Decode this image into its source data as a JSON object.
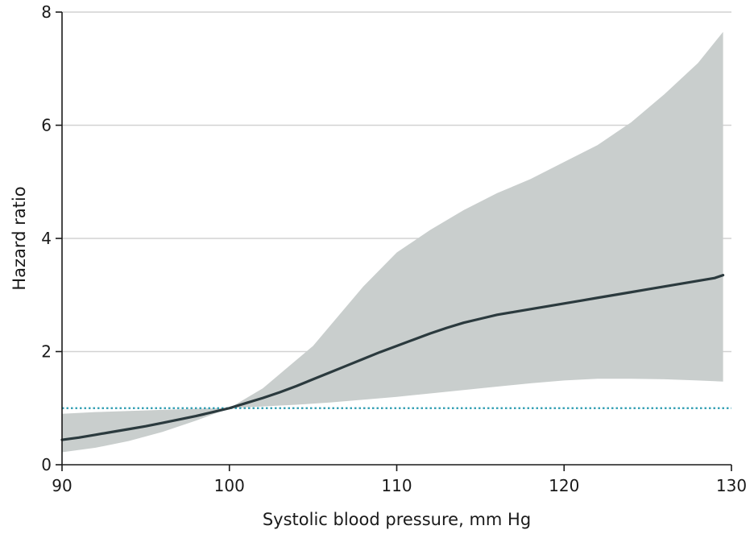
{
  "chart_data": {
    "type": "line",
    "title": "",
    "xlabel": "Systolic blood pressure, mm Hg",
    "ylabel": "Hazard ratio",
    "xlim": [
      90,
      130
    ],
    "ylim": [
      0,
      8
    ],
    "xticks": [
      90,
      100,
      110,
      120,
      130
    ],
    "yticks": [
      0,
      2,
      4,
      6,
      8
    ],
    "x_tick_labels": [
      "90",
      "100",
      "110",
      "120",
      "130"
    ],
    "y_tick_labels": [
      "0",
      "2",
      "4",
      "6",
      "8"
    ],
    "grid": "horizontal",
    "legend": "none",
    "reference_line": {
      "y": 1,
      "style": "dotted",
      "color": "#2a9bb0"
    },
    "series": [
      {
        "type": "line",
        "color": "#2b3a3e",
        "x": [
          90,
          91,
          92,
          93,
          94,
          95,
          96,
          97,
          98,
          99,
          100,
          101,
          102,
          103,
          104,
          105,
          106,
          107,
          108,
          109,
          110,
          111,
          112,
          113,
          114,
          115,
          116,
          117,
          118,
          119,
          120,
          121,
          122,
          123,
          124,
          125,
          126,
          127,
          128,
          129,
          129.5
        ],
        "y": [
          0.44,
          0.48,
          0.53,
          0.58,
          0.63,
          0.68,
          0.74,
          0.8,
          0.86,
          0.93,
          1.0,
          1.09,
          1.18,
          1.28,
          1.39,
          1.51,
          1.63,
          1.75,
          1.87,
          1.99,
          2.1,
          2.21,
          2.32,
          2.42,
          2.51,
          2.58,
          2.65,
          2.7,
          2.75,
          2.8,
          2.85,
          2.9,
          2.95,
          3.0,
          3.05,
          3.1,
          3.15,
          3.2,
          3.25,
          3.3,
          3.35
        ]
      }
    ],
    "confidence_band": {
      "color": "#c9cecd",
      "x": [
        90,
        92,
        94,
        96,
        98,
        100,
        102,
        104,
        105,
        106,
        108,
        110,
        112,
        114,
        116,
        118,
        120,
        122,
        124,
        126,
        128,
        129.5
      ],
      "upper": [
        0.9,
        0.93,
        0.95,
        0.97,
        0.99,
        1.0,
        1.35,
        1.85,
        2.1,
        2.45,
        3.15,
        3.75,
        4.15,
        4.5,
        4.8,
        5.05,
        5.35,
        5.65,
        6.05,
        6.55,
        7.1,
        7.65
      ],
      "lower": [
        0.22,
        0.3,
        0.42,
        0.58,
        0.78,
        1.0,
        1.03,
        1.06,
        1.08,
        1.1,
        1.15,
        1.2,
        1.26,
        1.32,
        1.38,
        1.44,
        1.49,
        1.52,
        1.52,
        1.51,
        1.49,
        1.47
      ]
    }
  }
}
